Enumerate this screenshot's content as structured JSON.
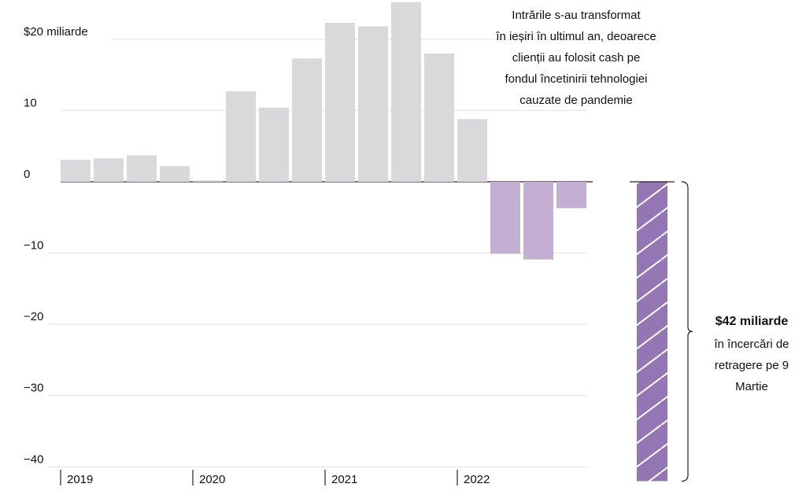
{
  "chart_data": {
    "type": "bar",
    "categories": [
      "2019",
      null,
      null,
      null,
      "2020",
      null,
      null,
      null,
      "2021",
      null,
      null,
      null,
      "2022",
      null,
      null,
      null
    ],
    "values": [
      3.1,
      3.3,
      3.7,
      2.2,
      0.2,
      12.7,
      10.4,
      17.3,
      22.3,
      21.8,
      25.2,
      18.0,
      8.8,
      -10.1,
      -10.9,
      -3.7
    ],
    "color": "#d9d9db",
    "negative_color": "#c4aed3",
    "ylim": [
      -42.5,
      25.5
    ],
    "yticks": [
      {
        "value": 20,
        "label": "$20 miliarde"
      },
      10,
      0,
      {
        "value": -10,
        "label": "−10"
      },
      {
        "value": -20,
        "label": "−20"
      },
      {
        "value": -30,
        "label": "−30"
      },
      {
        "value": -40,
        "label": "−40"
      }
    ],
    "grid": true,
    "annotation": [
      "Intrările s-au transformat",
      "în ieșiri în ultimul an, deoarece",
      "clienții au folosit cash pe",
      "fondul încetinirii tehnologiei",
      "cauzate de pandemie"
    ],
    "highlight": {
      "value": -42,
      "label": "$42 miliarde",
      "color": "#9476b4",
      "text": [
        "în încercări de",
        "retragere pe 9",
        "Martie"
      ]
    }
  }
}
